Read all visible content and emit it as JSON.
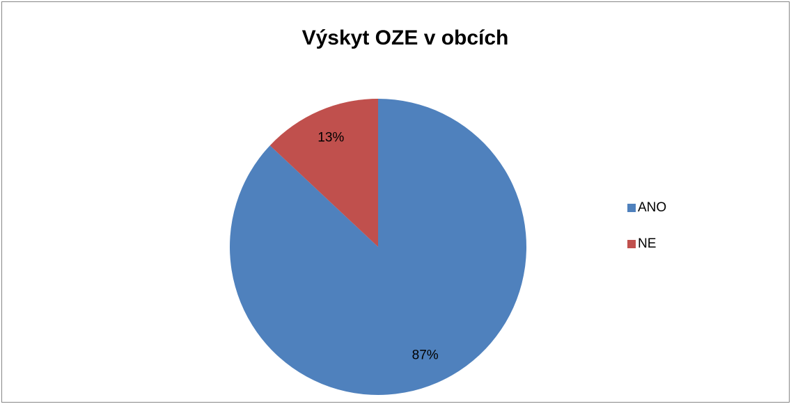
{
  "chart_data": {
    "type": "pie",
    "title": "Výskyt OZE v obcích",
    "categories": [
      "ANO",
      "NE"
    ],
    "values": [
      87,
      13
    ],
    "value_labels": [
      "87%",
      "13%"
    ],
    "colors": [
      "#4f81bd",
      "#c0504d"
    ],
    "legend": "right"
  }
}
